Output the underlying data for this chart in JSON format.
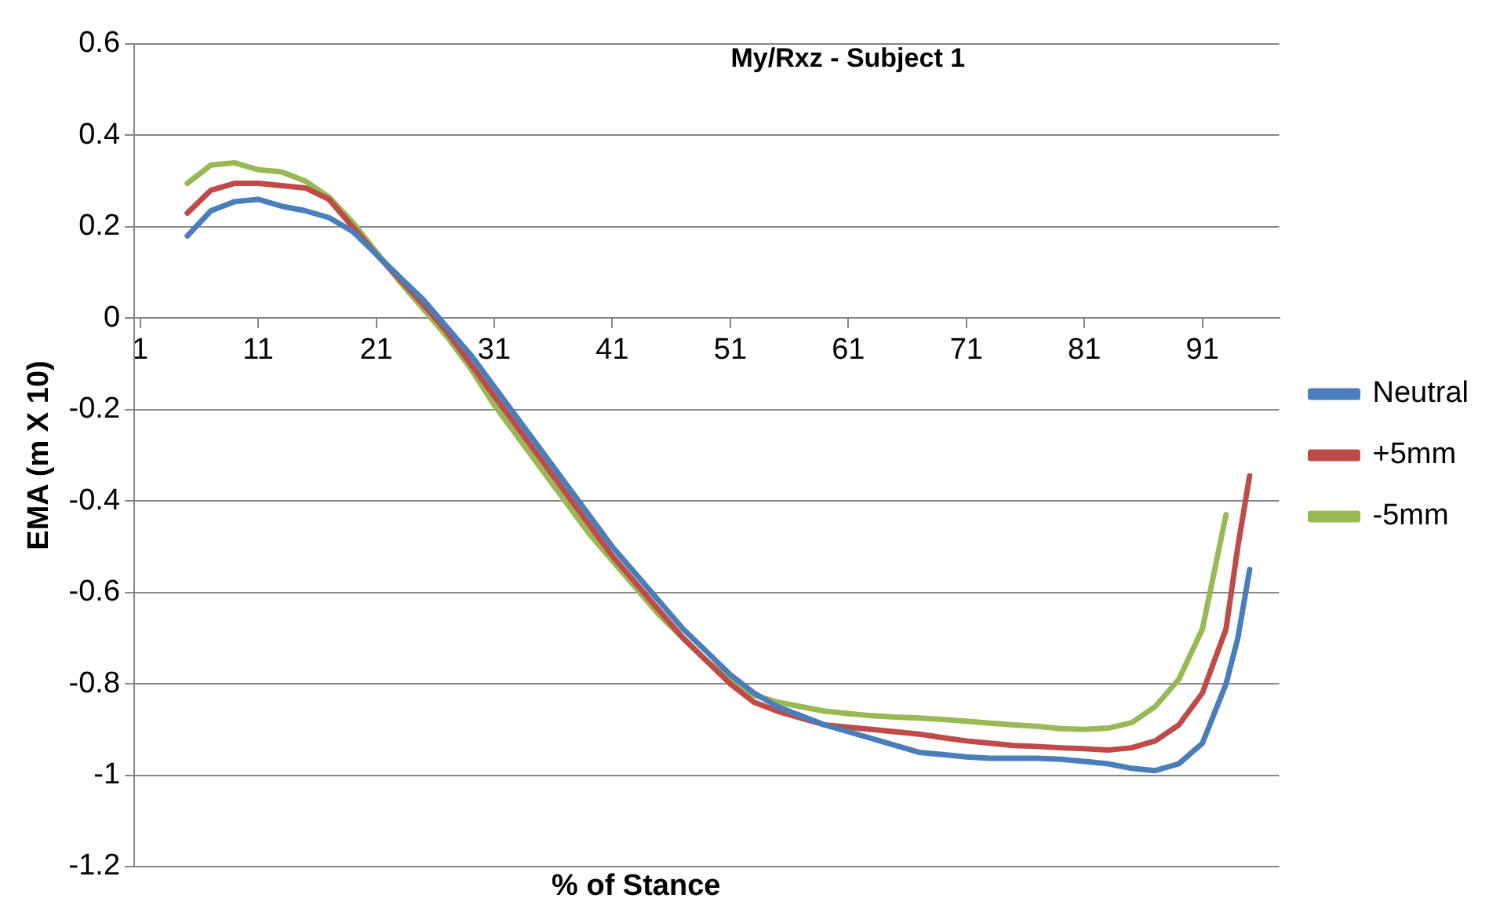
{
  "chart_data": {
    "type": "line",
    "title": "My/Rxz - Subject 1",
    "xlabel": "% of Stance",
    "ylabel": "EMA (m X 10)",
    "x": [
      5,
      7,
      9,
      11,
      13,
      15,
      17,
      19,
      21,
      23,
      25,
      27,
      29,
      31,
      33,
      35,
      37,
      39,
      41,
      43,
      45,
      47,
      49,
      51,
      53,
      55,
      57,
      59,
      61,
      63,
      65,
      67,
      69,
      71,
      73,
      75,
      77,
      79,
      81,
      83,
      85,
      87,
      89,
      91,
      93,
      94,
      95
    ],
    "xlim": [
      0.5,
      97.5
    ],
    "xticks": [
      1,
      11,
      21,
      31,
      41,
      51,
      61,
      71,
      81,
      91
    ],
    "ylim": [
      -1.2,
      0.6
    ],
    "yticks": [
      -1.2,
      -1,
      -0.8,
      -0.6,
      -0.4,
      -0.2,
      0,
      0.2,
      0.4,
      0.6
    ],
    "grid": "y",
    "legend": "right",
    "marker": "none",
    "line_style": "solid",
    "series": [
      {
        "name": "Neutral",
        "color": "#4a7ebb",
        "values": [
          0.18,
          0.235,
          0.255,
          0.26,
          0.245,
          0.235,
          0.22,
          0.19,
          0.14,
          0.09,
          0.04,
          -0.02,
          -0.08,
          -0.15,
          -0.22,
          -0.29,
          -0.36,
          -0.43,
          -0.5,
          -0.56,
          -0.62,
          -0.68,
          -0.73,
          -0.78,
          -0.82,
          -0.85,
          -0.87,
          -0.89,
          -0.905,
          -0.92,
          -0.935,
          -0.95,
          -0.955,
          -0.96,
          -0.963,
          -0.963,
          -0.963,
          -0.965,
          -0.97,
          -0.975,
          -0.985,
          -0.99,
          -0.975,
          -0.93,
          -0.8,
          -0.7,
          -0.55
        ]
      },
      {
        "name": "+5mm",
        "color": "#be4b48",
        "values": [
          0.23,
          0.28,
          0.295,
          0.295,
          0.29,
          0.285,
          0.26,
          0.2,
          0.14,
          0.085,
          0.03,
          -0.03,
          -0.1,
          -0.17,
          -0.24,
          -0.31,
          -0.38,
          -0.45,
          -0.52,
          -0.58,
          -0.64,
          -0.7,
          -0.75,
          -0.8,
          -0.84,
          -0.86,
          -0.875,
          -0.89,
          -0.895,
          -0.9,
          -0.905,
          -0.91,
          -0.918,
          -0.925,
          -0.93,
          -0.935,
          -0.937,
          -0.94,
          -0.942,
          -0.945,
          -0.94,
          -0.925,
          -0.89,
          -0.82,
          -0.68,
          -0.5,
          -0.345
        ]
      },
      {
        "name": "-5mm",
        "color": "#98b954",
        "values": [
          0.295,
          0.335,
          0.34,
          0.325,
          0.32,
          0.3,
          0.265,
          0.21,
          0.145,
          0.08,
          0.02,
          -0.04,
          -0.11,
          -0.19,
          -0.26,
          -0.33,
          -0.4,
          -0.47,
          -0.53,
          -0.59,
          -0.65,
          -0.7,
          -0.75,
          -0.79,
          -0.825,
          -0.84,
          -0.85,
          -0.86,
          -0.865,
          -0.87,
          -0.873,
          -0.875,
          -0.878,
          -0.882,
          -0.886,
          -0.89,
          -0.893,
          -0.898,
          -0.9,
          -0.897,
          -0.885,
          -0.85,
          -0.79,
          -0.68,
          -0.43,
          null,
          null
        ]
      }
    ]
  }
}
